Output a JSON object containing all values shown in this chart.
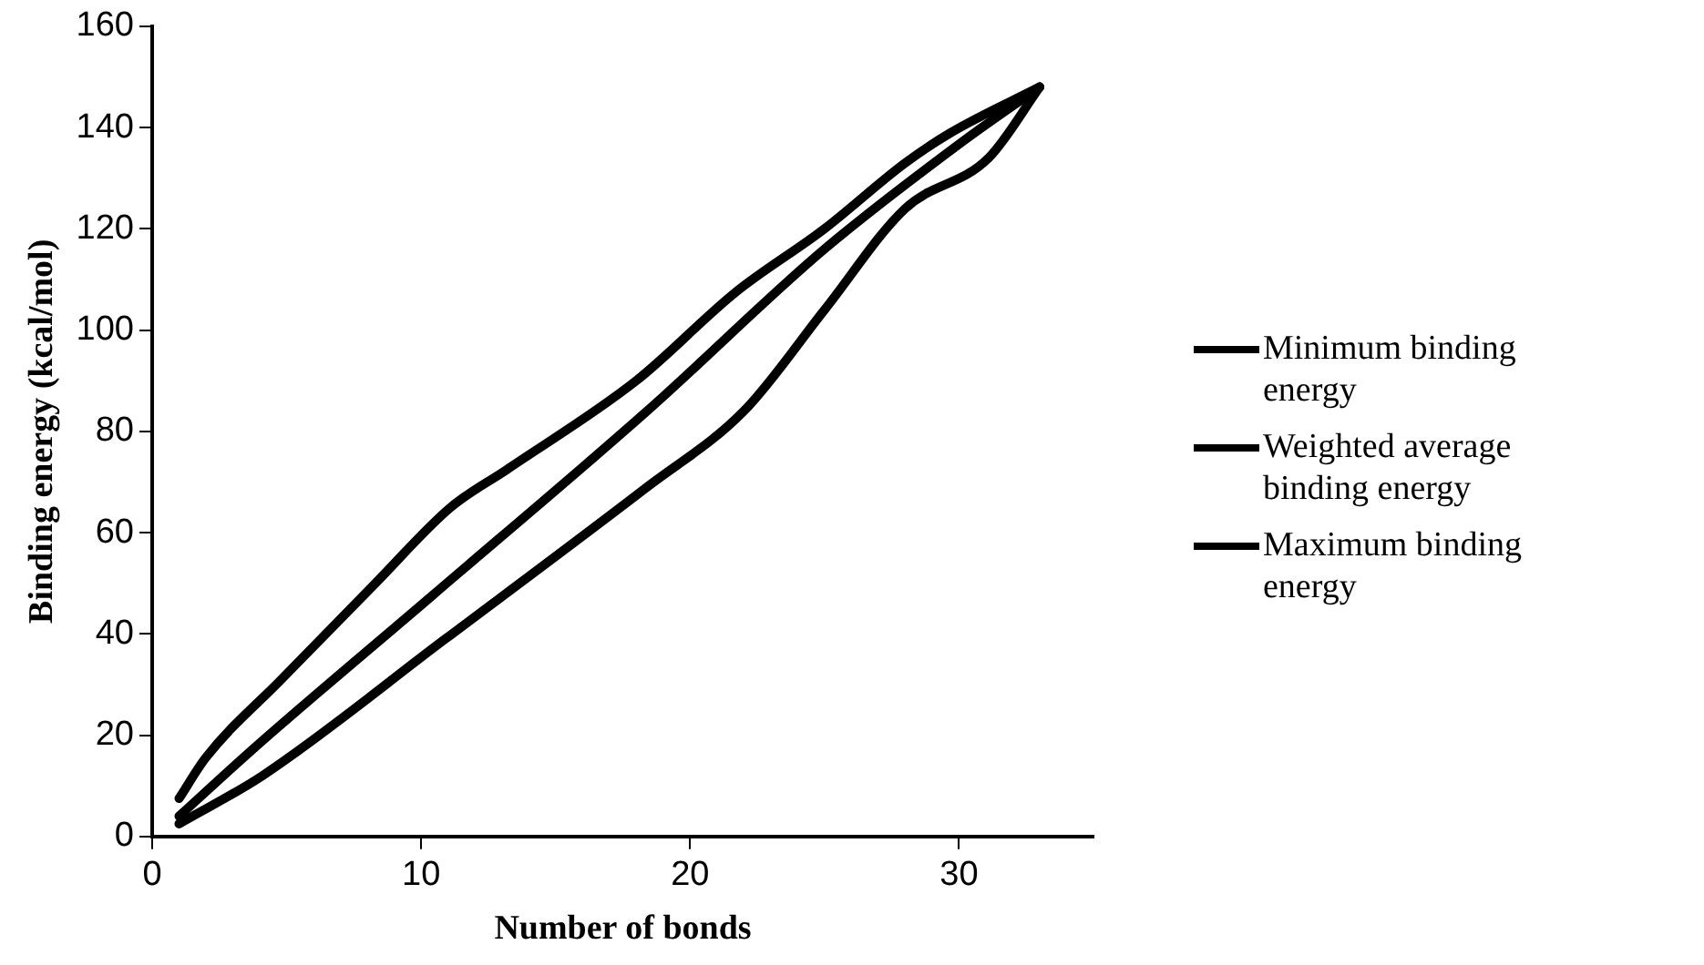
{
  "chart_data": {
    "type": "line",
    "xlabel": "Number of bonds",
    "ylabel": "Binding energy (kcal/mol)",
    "xlim": [
      0,
      35
    ],
    "xticks": [
      0,
      10,
      20,
      30
    ],
    "ylim": [
      0,
      160
    ],
    "yticks": [
      0,
      20,
      40,
      60,
      80,
      100,
      120,
      140,
      160
    ],
    "grid": false,
    "legend": "right",
    "marker": "none",
    "line_style": "solid",
    "series": [
      {
        "name": "Minimum binding energy",
        "color": "#000000",
        "x": [
          1,
          4.1,
          10.9,
          18.4,
          22,
          25,
          28,
          31.1,
          33
        ],
        "values": [
          2.5,
          12,
          39,
          69,
          84,
          104,
          124,
          134,
          148
        ]
      },
      {
        "name": "Weighted average binding energy",
        "color": "#000000",
        "x": [
          1,
          3.8,
          10.4,
          18.4,
          25,
          30.2,
          33
        ],
        "values": [
          4,
          17.5,
          47.5,
          84,
          116,
          137.5,
          148
        ]
      },
      {
        "name": "Maximum binding energy",
        "color": "#000000",
        "x": [
          1,
          2,
          4.8,
          8.3,
          11.1,
          13.2,
          18,
          21.7,
          25,
          28,
          29.7,
          33
        ],
        "values": [
          7.5,
          15.6,
          31,
          50,
          65,
          72.5,
          90,
          107.5,
          120,
          133,
          139,
          148
        ]
      }
    ]
  }
}
